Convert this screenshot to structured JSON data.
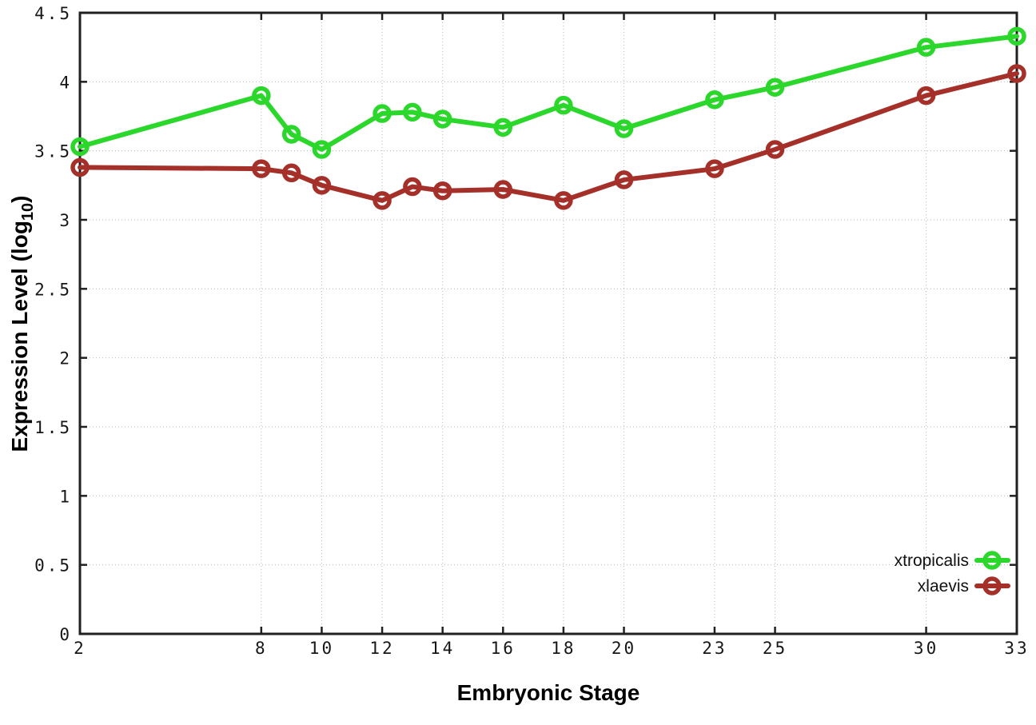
{
  "figure": {
    "background": "#ffffff"
  },
  "chart_data": {
    "type": "line",
    "title": "",
    "xlabel": "Embryonic Stage",
    "ylabel": "Expression Level (log10)",
    "ylabel_parts": {
      "main": "Expression Level (log",
      "sub": "10",
      "end": ")"
    },
    "xlim": [
      2,
      33
    ],
    "ylim": [
      0,
      4.5
    ],
    "grid": true,
    "grid_style": "dotted",
    "legend_position": "inside bottom-right",
    "marker": "open-circle",
    "axis_color": "#202020",
    "grid_color": "#b9b9b9",
    "x": [
      2,
      8,
      9,
      10,
      12,
      13,
      14,
      16,
      18,
      20,
      23,
      25,
      30,
      33
    ],
    "x_tick_values": [
      2,
      8,
      10,
      12,
      14,
      16,
      18,
      20,
      23,
      25,
      30,
      33
    ],
    "x_tick_labels": [
      "2",
      "8",
      "10",
      "12",
      "14",
      "16",
      "18",
      "20",
      "23",
      "25",
      "30",
      "33"
    ],
    "y_tick_values": [
      0,
      0.5,
      1,
      1.5,
      2,
      2.5,
      3,
      3.5,
      4,
      4.5
    ],
    "y_tick_labels": [
      "0",
      "0.5",
      "1",
      "1.5",
      "2",
      "2.5",
      "3",
      "3.5",
      "4",
      "4.5"
    ],
    "series": [
      {
        "name": "xtropicalis",
        "color": "#2bd72b",
        "values": [
          3.53,
          3.9,
          3.62,
          3.51,
          3.77,
          3.78,
          3.73,
          3.67,
          3.83,
          3.66,
          3.87,
          3.96,
          4.25,
          4.33
        ]
      },
      {
        "name": "xlaevis",
        "color": "#a5302a",
        "values": [
          3.38,
          3.37,
          3.34,
          3.25,
          3.14,
          3.24,
          3.21,
          3.22,
          3.14,
          3.29,
          3.37,
          3.51,
          3.9,
          4.06
        ]
      }
    ]
  }
}
